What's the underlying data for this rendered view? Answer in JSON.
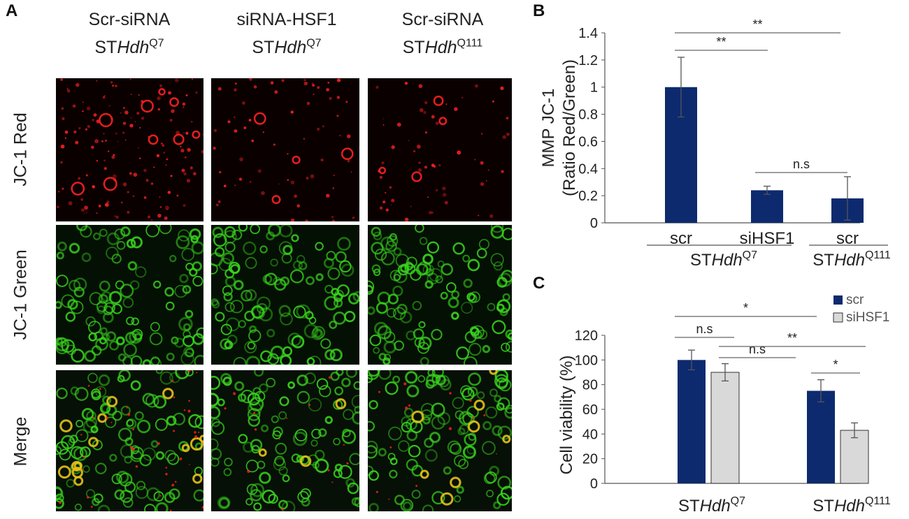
{
  "panel_a": {
    "letter": "A",
    "columns": [
      {
        "line1": "Scr-siRNA",
        "prefix": "ST",
        "italic": "Hdh",
        "sup": "Q7"
      },
      {
        "line1": "siRNA-HSF1",
        "prefix": "ST",
        "italic": "Hdh",
        "sup": "Q7"
      },
      {
        "line1": "Scr-siRNA",
        "prefix": "ST",
        "italic": "Hdh",
        "sup": "Q111"
      }
    ],
    "rows": [
      "JC-1 Red",
      "JC-1 Green",
      "Merge"
    ]
  },
  "colors": {
    "bar_scr": "#0d2a6e",
    "bar_sihsf1": "#d9d9d9",
    "red_channel": "#ff2020",
    "green_channel": "#39d21e",
    "merge_yellow": "#e6c21a"
  },
  "chart_data": [
    {
      "panel": "B",
      "type": "bar",
      "ylabel_line1": "MMP JC-1",
      "ylabel_line2": "(Ratio Red/Green)",
      "categories": [
        "scr",
        "siHSF1",
        "scr"
      ],
      "values": [
        1.0,
        0.24,
        0.18
      ],
      "errors": [
        0.22,
        0.03,
        0.16
      ],
      "ylim": [
        0,
        1.4
      ],
      "yticks": [
        "0",
        "0.2",
        "0.4",
        "0.6",
        "0.8",
        "1",
        "1.2",
        "1.4"
      ],
      "group_labels": [
        {
          "prefix": "ST",
          "italic": "Hdh",
          "sup": "Q7"
        },
        {
          "prefix": "ST",
          "italic": "Hdh",
          "sup": "Q111"
        }
      ],
      "significance": [
        {
          "from": 0,
          "to": 1,
          "label": "**"
        },
        {
          "from": 0,
          "to": 2,
          "label": "**"
        },
        {
          "from": 1,
          "to": 2,
          "label": "n.s"
        }
      ]
    },
    {
      "panel": "C",
      "type": "bar",
      "ylabel": "Cell viability (%)",
      "ylim": [
        0,
        120
      ],
      "yticks": [
        "0",
        "20",
        "40",
        "60",
        "80",
        "100",
        "120"
      ],
      "groups": [
        {
          "prefix": "ST",
          "italic": "Hdh",
          "sup": "Q7"
        },
        {
          "prefix": "ST",
          "italic": "Hdh",
          "sup": "Q111"
        }
      ],
      "series": [
        {
          "name": "scr",
          "values": [
            100,
            75
          ],
          "errors": [
            8,
            9
          ]
        },
        {
          "name": "siHSF1",
          "values": [
            90,
            43
          ],
          "errors": [
            7,
            6
          ]
        }
      ],
      "significance": [
        {
          "label": "n.s"
        },
        {
          "label": "*"
        },
        {
          "label": "n.s"
        },
        {
          "label": "**"
        },
        {
          "label": "*"
        }
      ]
    }
  ]
}
